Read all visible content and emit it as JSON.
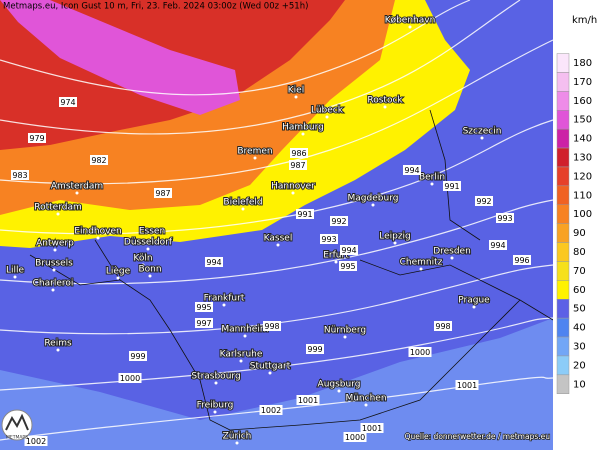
{
  "header": {
    "title": "Metmaps.eu, Icon Gust 10 m, Fri, 23. Feb. 2024 03:00z (Wed 00z +51h)"
  },
  "footer": {
    "source": "Quelle: donnerwetter.de / metmaps.eu"
  },
  "logo": {
    "text": "METMAPS"
  },
  "cities": [
    "København",
    "Kiel",
    "Lübeck",
    "Rostock",
    "Szczecin",
    "Hamburg",
    "Bremen",
    "Berlin",
    "Amsterdam",
    "Hannover",
    "Magdeburg",
    "Rotterdam",
    "Bielefeld",
    "Eindhoven",
    "Essen",
    "Düsseldorf",
    "Kassel",
    "Leipzig",
    "Dresden",
    "Antwerp",
    "Erfurt",
    "Chemnitz",
    "Brussels",
    "Köln",
    "Bonn",
    "Lille",
    "Liège",
    "Charleroi",
    "Frankfurt",
    "Prague",
    "Mannheim",
    "Nürnberg",
    "Reims",
    "Karlsruhe",
    "Stuttgart",
    "Strasbourg",
    "Augsburg",
    "München",
    "Freiburg",
    "Zürich"
  ],
  "isobar_labels": [
    "974",
    "979",
    "983",
    "982",
    "987",
    "986",
    "987",
    "991",
    "992",
    "993",
    "994",
    "995",
    "994",
    "995",
    "997",
    "998",
    "999",
    "999",
    "1000",
    "1000",
    "1001",
    "1002",
    "1002",
    "1001",
    "1000",
    "1001",
    "996",
    "994",
    "992",
    "991",
    "993",
    "998",
    "994"
  ],
  "legend": {
    "unit": "km/h",
    "items": [
      {
        "label": 180,
        "color": "#fbe6fb"
      },
      {
        "label": 170,
        "color": "#f5bff0"
      },
      {
        "label": 160,
        "color": "#ee8ce8"
      },
      {
        "label": 150,
        "color": "#e055d8"
      },
      {
        "label": 140,
        "color": "#cc22a6"
      },
      {
        "label": 130,
        "color": "#d0202c"
      },
      {
        "label": 120,
        "color": "#e6402a"
      },
      {
        "label": 110,
        "color": "#f06222"
      },
      {
        "label": 100,
        "color": "#f78222"
      },
      {
        "label": 90,
        "color": "#f8a224"
      },
      {
        "label": 80,
        "color": "#fbc820"
      },
      {
        "label": 70,
        "color": "#f6e01c"
      },
      {
        "label": 60,
        "color": "#fff200"
      },
      {
        "label": 50,
        "color": "#5c60e6"
      },
      {
        "label": 40,
        "color": "#4f84f0"
      },
      {
        "label": 30,
        "color": "#72a6f6"
      },
      {
        "label": 20,
        "color": "#8cccf8"
      },
      {
        "label": 10,
        "color": "#c4c4c4"
      }
    ]
  }
}
